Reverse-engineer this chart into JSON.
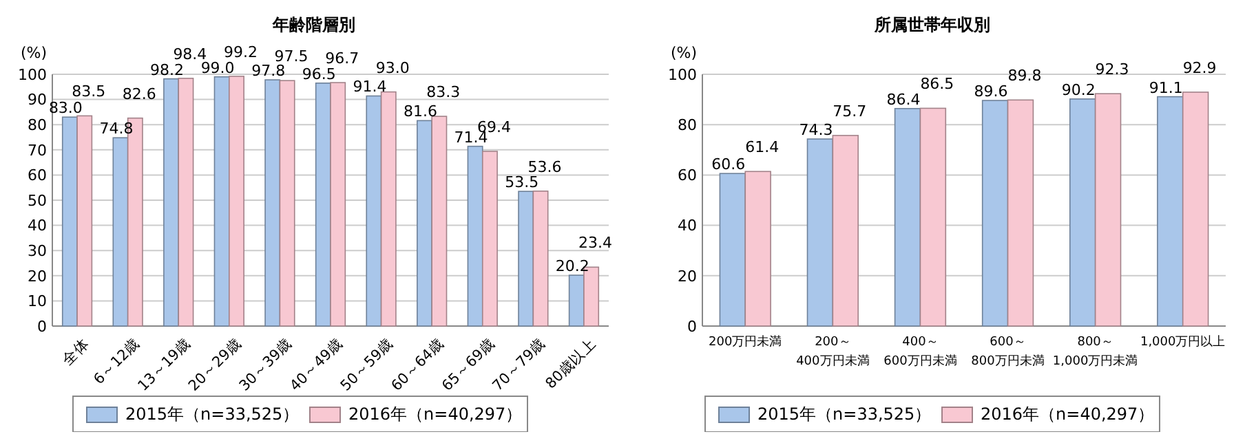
{
  "chart_data": [
    {
      "type": "bar",
      "title": "年齢階層別",
      "ylabel": "(%)",
      "categories": [
        "全体",
        "6～12歳",
        "13～19歳",
        "20～29歳",
        "30～39歳",
        "40～49歳",
        "50～59歳",
        "60～64歳",
        "65～69歳",
        "70～79歳",
        "80歳以上"
      ],
      "series": [
        {
          "name": "2015年（n=33,525）",
          "color": "#a9c6ea",
          "values": [
            83.0,
            74.8,
            98.2,
            99.0,
            97.8,
            96.5,
            91.4,
            81.6,
            71.4,
            53.5,
            20.2
          ],
          "value_labels": [
            "83.0",
            "74.8",
            "98.2",
            "99.0",
            "97.8",
            "96.5",
            "91.4",
            "81.6",
            "71.4",
            "53.5",
            "20.2"
          ]
        },
        {
          "name": "2016年（n=40,297）",
          "color": "#f8c8d2",
          "values": [
            83.5,
            82.6,
            98.4,
            99.2,
            97.5,
            96.7,
            93.0,
            83.3,
            69.4,
            53.6,
            23.4
          ],
          "value_labels": [
            "83.5",
            "82.6",
            "98.4",
            "99.2",
            "97.5",
            "96.7",
            "93.0",
            "83.3",
            "69.4",
            "53.6",
            "23.4"
          ]
        }
      ],
      "ylim": [
        0,
        100
      ],
      "yticks": [
        0,
        10,
        20,
        30,
        40,
        50,
        60,
        70,
        80,
        90,
        100
      ],
      "grid": "y",
      "legend": "bottom"
    },
    {
      "type": "bar",
      "title": "所属世帯年収別",
      "ylabel": "(%)",
      "categories": [
        "200万円未満",
        "200～400万円未満",
        "400～600万円未満",
        "600～800万円未満",
        "800～1,000万円未満",
        "1,000万円以上"
      ],
      "series": [
        {
          "name": "2015年（n=33,525）",
          "color": "#a9c6ea",
          "values": [
            60.6,
            74.3,
            86.4,
            89.6,
            90.2,
            91.1
          ],
          "value_labels": [
            "60.6",
            "74.3",
            "86.4",
            "89.6",
            "90.2",
            "91.1"
          ]
        },
        {
          "name": "2016年（n=40,297）",
          "color": "#f8c8d2",
          "values": [
            61.4,
            75.7,
            86.5,
            89.8,
            92.3,
            92.9
          ],
          "value_labels": [
            "61.4",
            "75.7",
            "86.5",
            "89.8",
            "92.3",
            "92.9"
          ]
        }
      ],
      "ylim": [
        0,
        100
      ],
      "yticks": [
        0,
        20,
        40,
        60,
        80,
        100
      ],
      "grid": "y",
      "legend": "bottom"
    }
  ]
}
